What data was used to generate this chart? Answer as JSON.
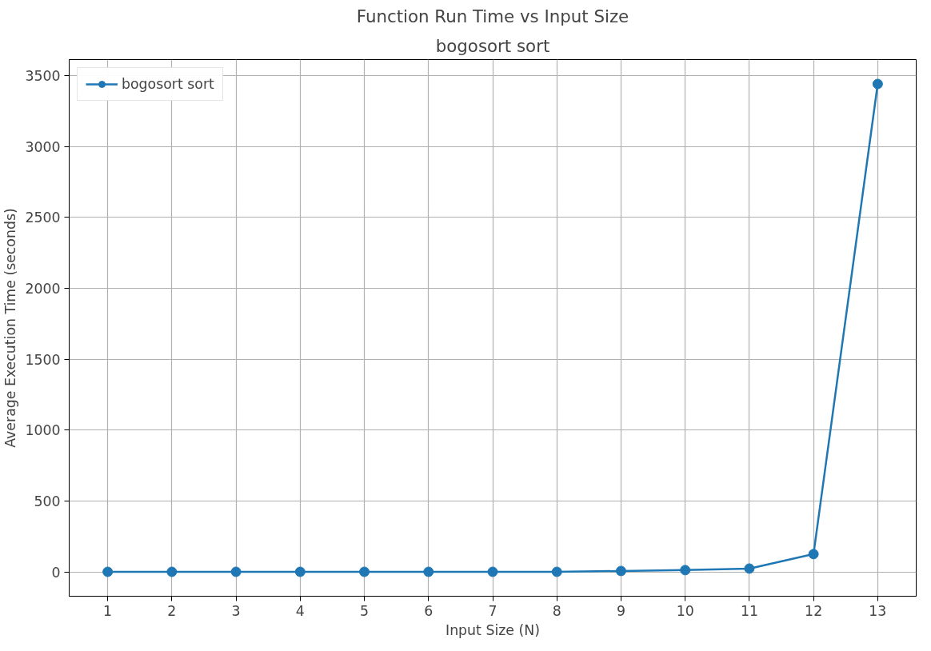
{
  "chart_data": {
    "type": "line",
    "title": "Function Run Time vs Input Size",
    "subtitle": "bogosort sort",
    "xlabel": "Input Size (N)",
    "ylabel": "Average Execution Time (seconds)",
    "x": [
      1,
      2,
      3,
      4,
      5,
      6,
      7,
      8,
      9,
      10,
      11,
      12,
      13
    ],
    "series": [
      {
        "name": "bogosort sort",
        "color": "#1f77b4",
        "values": [
          0,
          0,
          0,
          0,
          0,
          0,
          0,
          0,
          6,
          12,
          23,
          125,
          3440
        ]
      }
    ],
    "xlim": [
      0.4,
      13.6
    ],
    "ylim": [
      -172,
      3612
    ],
    "xticks": [
      1,
      2,
      3,
      4,
      5,
      6,
      7,
      8,
      9,
      10,
      11,
      12,
      13
    ],
    "yticks": [
      0,
      500,
      1000,
      1500,
      2000,
      2500,
      3000,
      3500
    ],
    "grid": true,
    "legend": "top left",
    "marker": "circle",
    "line_style": "solid"
  }
}
